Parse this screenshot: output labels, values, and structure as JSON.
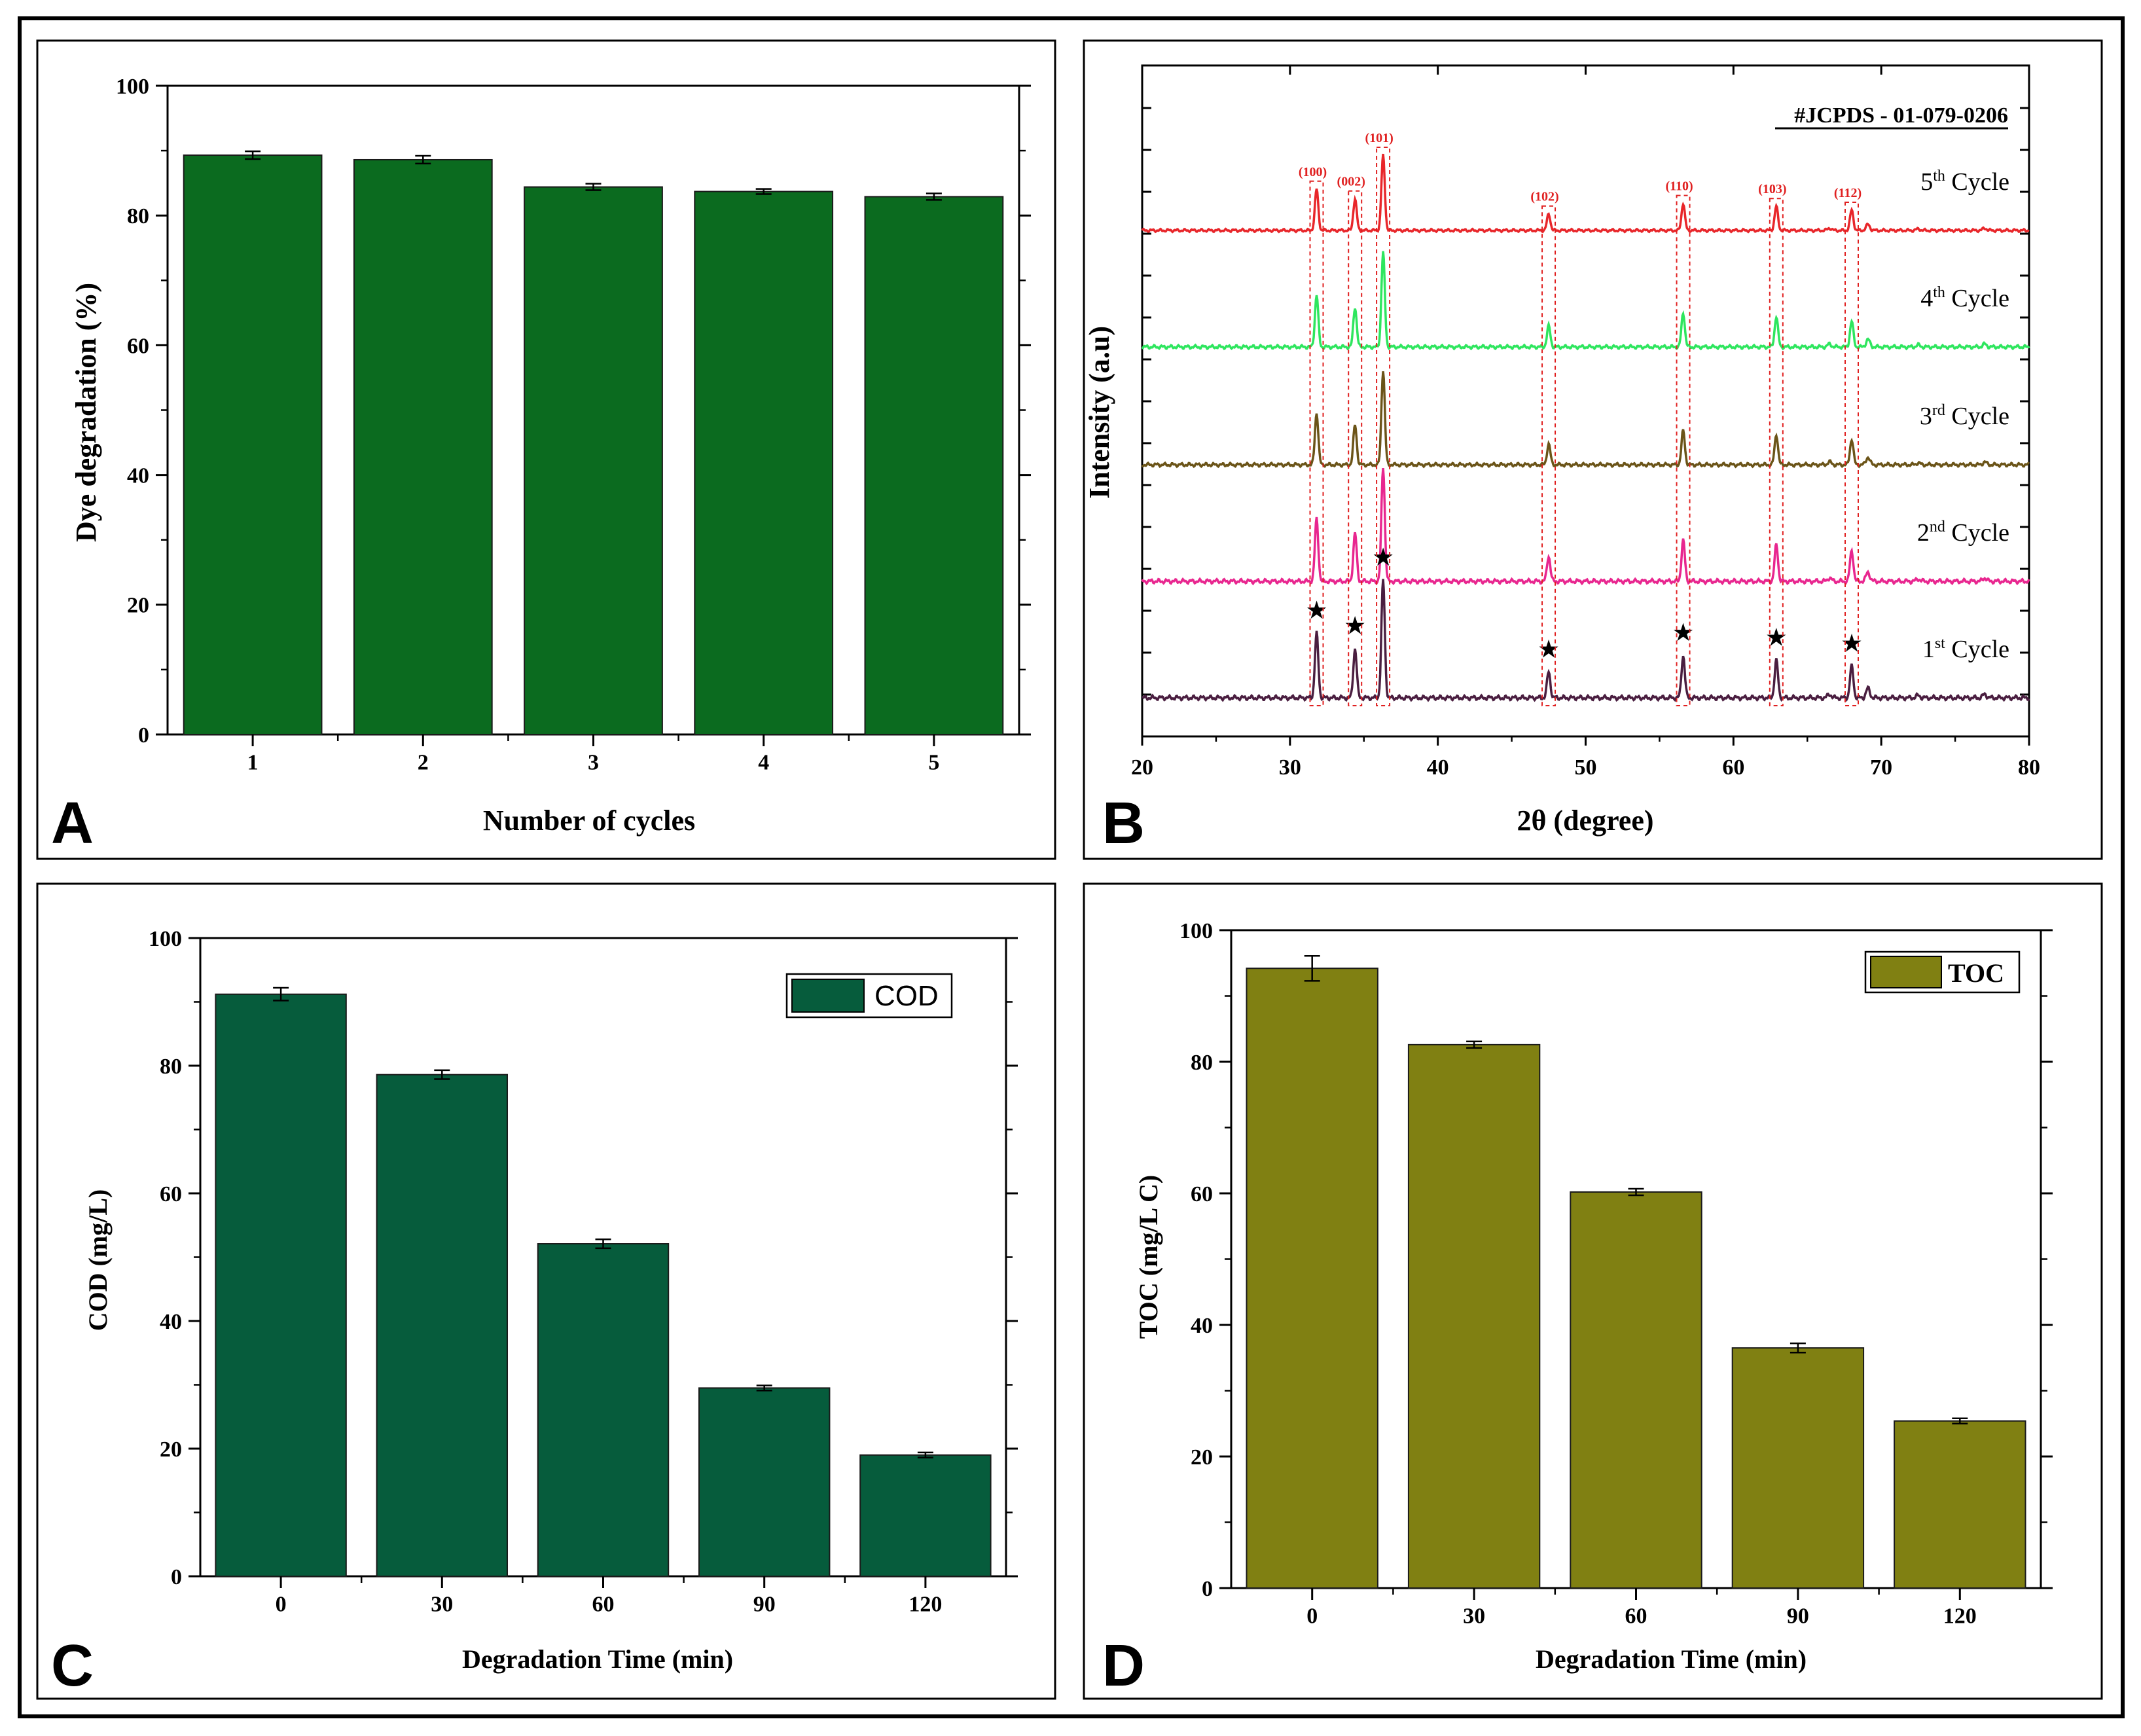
{
  "figure": {
    "panel_labels": [
      "A",
      "B",
      "C",
      "D"
    ]
  },
  "colors": {
    "panelA_bar": "#0b6b1f",
    "panelC_bar": "#065c3c",
    "panelD_bar": "#808012",
    "xrd_cycle5": "#e8262a",
    "xrd_cycle4": "#2ee65e",
    "xrd_cycle3": "#6b5418",
    "xrd_cycle2": "#e8268f",
    "xrd_cycle1": "#4a1e40",
    "reference_box": "#e02020"
  },
  "chart_data": [
    {
      "id": "A",
      "type": "bar",
      "panel_label": "A",
      "xlabel": "Number of cycles",
      "ylabel": "Dye degradation (%)",
      "categories": [
        "1",
        "2",
        "3",
        "4",
        "5"
      ],
      "values": [
        89.3,
        88.6,
        84.4,
        83.7,
        82.9
      ],
      "errors": [
        0.6,
        0.6,
        0.5,
        0.4,
        0.5
      ],
      "ylim": [
        0,
        100
      ],
      "yticks": [
        "0",
        "20",
        "40",
        "60",
        "80",
        "100"
      ],
      "grid": false
    },
    {
      "id": "B",
      "type": "line",
      "panel_label": "B",
      "xlabel": "2θ (degree)",
      "ylabel": "Intensity (a.u)",
      "xlim": [
        20,
        80
      ],
      "xticks": [
        "20",
        "30",
        "40",
        "50",
        "60",
        "70",
        "80"
      ],
      "reference": "#JCPDS - 01-079-0206",
      "peaks": [
        {
          "two_theta": 31.8,
          "hkl": "(100)",
          "rel_intensity": 0.55
        },
        {
          "two_theta": 34.4,
          "hkl": "(002)",
          "rel_intensity": 0.42
        },
        {
          "two_theta": 36.3,
          "hkl": "(101)",
          "rel_intensity": 1.0
        },
        {
          "two_theta": 47.5,
          "hkl": "(102)",
          "rel_intensity": 0.22
        },
        {
          "two_theta": 56.6,
          "hkl": "(110)",
          "rel_intensity": 0.36
        },
        {
          "two_theta": 62.9,
          "hkl": "(103)",
          "rel_intensity": 0.32
        },
        {
          "two_theta": 68.0,
          "hkl": "(112)",
          "rel_intensity": 0.27
        }
      ],
      "series": [
        {
          "name": "5th Cycle",
          "base": "5",
          "sup": "th",
          "word": "Cycle",
          "offset": 4
        },
        {
          "name": "4th Cycle",
          "base": "4",
          "sup": "th",
          "word": "Cycle",
          "offset": 3
        },
        {
          "name": "3rd Cycle",
          "base": "3",
          "sup": "rd",
          "word": "Cycle",
          "offset": 2
        },
        {
          "name": "2nd Cycle",
          "base": "2",
          "sup": "nd",
          "word": "Cycle",
          "offset": 1
        },
        {
          "name": "1st Cycle",
          "base": "1",
          "sup": "st",
          "word": "Cycle",
          "offset": 0
        }
      ],
      "star_marker": "★",
      "grid": false
    },
    {
      "id": "C",
      "type": "bar",
      "panel_label": "C",
      "xlabel": "Degradation Time (min)",
      "ylabel": "COD (mg/L)",
      "legend": "COD",
      "categories": [
        "0",
        "30",
        "60",
        "90",
        "120"
      ],
      "values": [
        91.2,
        78.6,
        52.1,
        29.5,
        19.0
      ],
      "errors": [
        1.0,
        0.7,
        0.7,
        0.4,
        0.4
      ],
      "ylim": [
        0,
        100
      ],
      "yticks": [
        "0",
        "20",
        "40",
        "60",
        "80",
        "100"
      ],
      "grid": false
    },
    {
      "id": "D",
      "type": "bar",
      "panel_label": "D",
      "xlabel": "Degradation Time (min)",
      "ylabel": "TOC (mg/L C)",
      "legend": "TOC",
      "categories": [
        "0",
        "30",
        "60",
        "90",
        "120"
      ],
      "values": [
        94.2,
        82.6,
        60.2,
        36.5,
        25.4
      ],
      "errors": [
        1.9,
        0.5,
        0.5,
        0.7,
        0.4
      ],
      "ylim": [
        0,
        100
      ],
      "yticks": [
        "0",
        "20",
        "40",
        "60",
        "80",
        "100"
      ],
      "grid": false
    }
  ]
}
